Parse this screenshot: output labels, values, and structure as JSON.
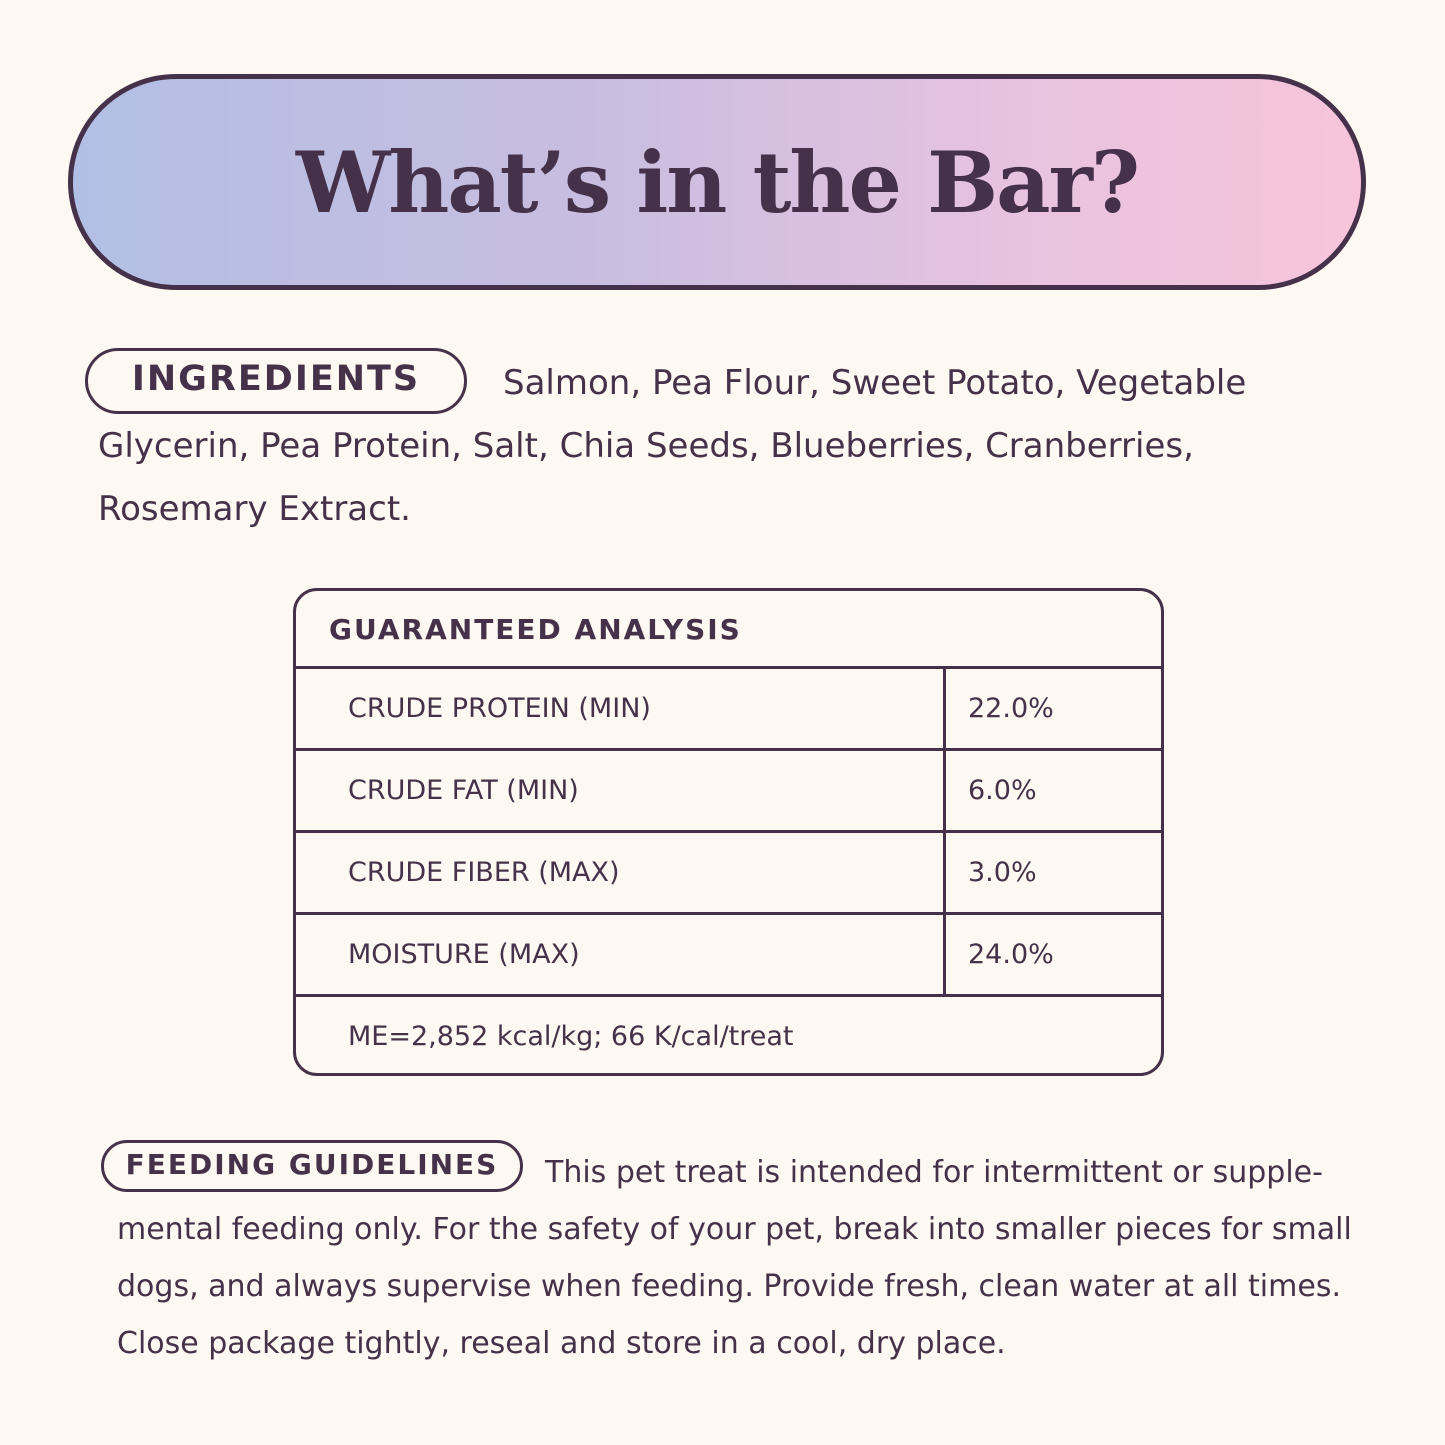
{
  "header": {
    "title": "What’s in the Bar?"
  },
  "ingredients": {
    "label": "INGREDIENTS",
    "text": "Salmon, Pea Flour, Sweet Potato, Vegetable Glycerin, Pea Protein, Salt, Chia Seeds, Blueberries, Cranberries, Rosemary Extract."
  },
  "analysis": {
    "title": "GUARANTEED ANALYSIS",
    "rows": [
      {
        "label": "CRUDE PROTEIN (MIN)",
        "value": "22.0%"
      },
      {
        "label": "CRUDE FAT (MIN)",
        "value": "6.0%"
      },
      {
        "label": "CRUDE FIBER (MAX)",
        "value": "3.0%"
      },
      {
        "label": "MOISTURE (MAX)",
        "value": "24.0%"
      }
    ],
    "footer": "ME=2,852 kcal/kg; 66 K/cal/treat"
  },
  "feeding": {
    "label": "FEEDING GUIDELINES",
    "text": "This pet treat is intended for intermittent or supple­mental feeding only. For the safety of your pet, break into smaller pieces for small dogs, and always supervise when feeding. Provide fresh, clean water at all times. Close package tightly, reseal and store in a cool, dry place."
  },
  "colors": {
    "text": "#45324a",
    "background": "#fdf8f1",
    "gradient_start": "#b2bfe4",
    "gradient_end": "#f7c4db"
  }
}
